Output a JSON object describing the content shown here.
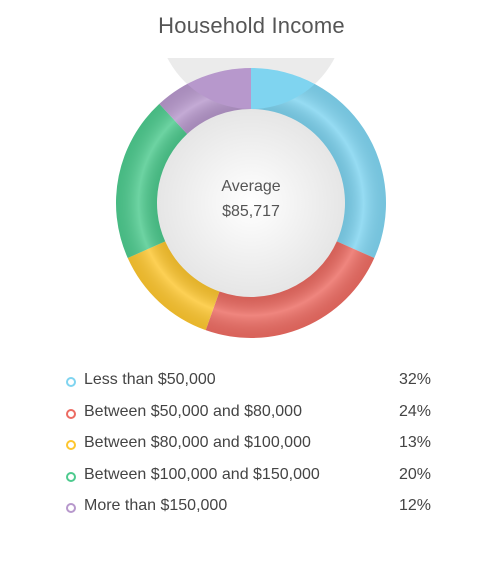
{
  "chart_data": {
    "type": "pie",
    "title": "Household Income",
    "center": {
      "label": "Average",
      "value": "$85,717"
    },
    "categories": [
      "Less than $50,000",
      "Between $50,000 and $80,000",
      "Between $80,000 and $100,000",
      "Between $100,000 and $150,000",
      "More than $150,000"
    ],
    "values": [
      32,
      24,
      13,
      20,
      12
    ],
    "value_labels": [
      "32%",
      "24%",
      "13%",
      "20%",
      "12%"
    ],
    "colors": [
      "#7fd4f0",
      "#ec6b62",
      "#fdc62f",
      "#4dca8e",
      "#b798cc"
    ],
    "legend_placement": "bottom"
  }
}
